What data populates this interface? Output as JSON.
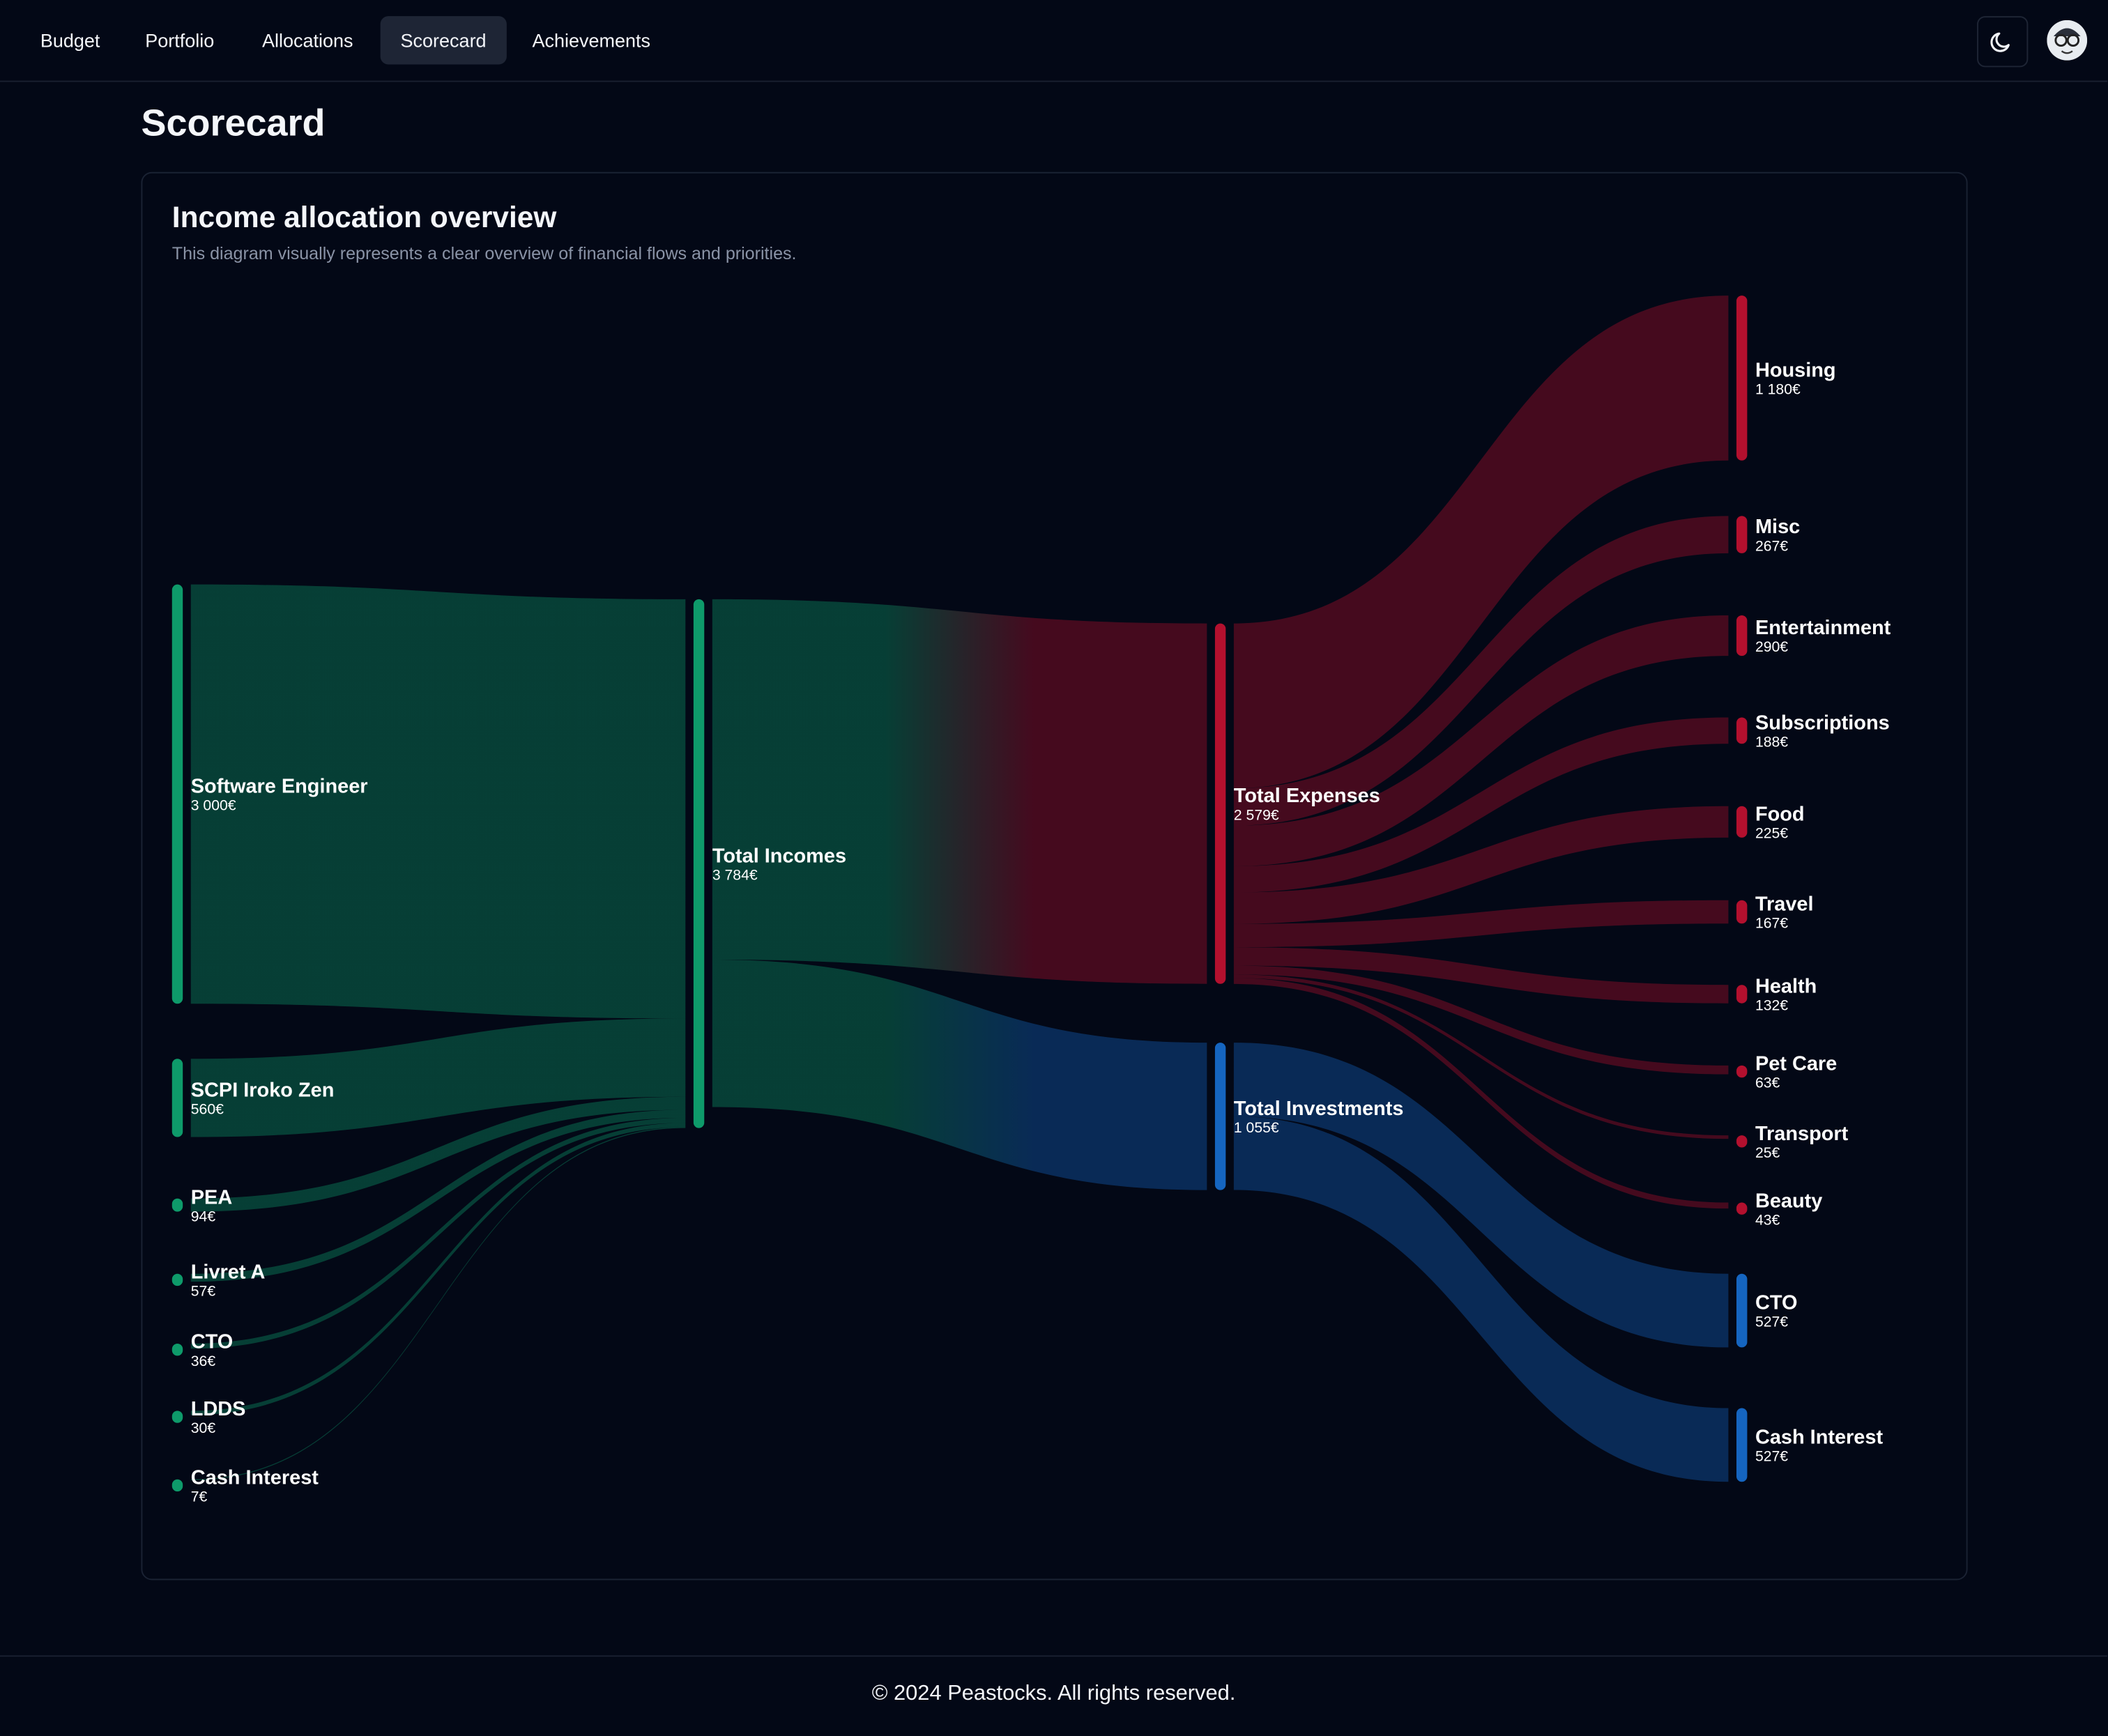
{
  "nav": {
    "items": [
      "Budget",
      "Portfolio",
      "Allocations",
      "Scorecard",
      "Achievements"
    ],
    "active": 3
  },
  "page_title": "Scorecard",
  "card": {
    "title": "Income allocation overview",
    "subtitle": "This diagram visually represents a clear overview of financial flows and priorities."
  },
  "chart_data": {
    "type": "sankey",
    "nodes": [
      {
        "name": "Software Engineer",
        "value": 3000,
        "value_label": "3 000€",
        "color": "#0e9a6a"
      },
      {
        "name": "SCPI Iroko Zen",
        "value": 560,
        "value_label": "560€",
        "color": "#0e9a6a"
      },
      {
        "name": "PEA",
        "value": 94,
        "value_label": "94€",
        "color": "#0e9a6a"
      },
      {
        "name": "Livret A",
        "value": 57,
        "value_label": "57€",
        "color": "#0e9a6a"
      },
      {
        "name": "CTO",
        "value": 36,
        "value_label": "36€",
        "color": "#0e9a6a"
      },
      {
        "name": "LDDS",
        "value": 30,
        "value_label": "30€",
        "color": "#0e9a6a"
      },
      {
        "name": "Cash Interest",
        "value": 7,
        "value_label": "7€",
        "color": "#0e9a6a"
      },
      {
        "name": "Total Incomes",
        "value": 3784,
        "value_label": "3 784€",
        "color": "#0e9a6a"
      },
      {
        "name": "Total Expenses",
        "value": 2579,
        "value_label": "2 579€",
        "color": "#b3102e"
      },
      {
        "name": "Total Investments",
        "value": 1055,
        "value_label": "1 055€",
        "color": "#1565c0"
      },
      {
        "name": "Housing",
        "value": 1180,
        "value_label": "1 180€",
        "color": "#b3102e"
      },
      {
        "name": "Misc",
        "value": 267,
        "value_label": "267€",
        "color": "#b3102e"
      },
      {
        "name": "Entertainment",
        "value": 290,
        "value_label": "290€",
        "color": "#b3102e"
      },
      {
        "name": "Subscriptions",
        "value": 188,
        "value_label": "188€",
        "color": "#b3102e"
      },
      {
        "name": "Food",
        "value": 225,
        "value_label": "225€",
        "color": "#b3102e"
      },
      {
        "name": "Travel",
        "value": 167,
        "value_label": "167€",
        "color": "#b3102e"
      },
      {
        "name": "Health",
        "value": 132,
        "value_label": "132€",
        "color": "#b3102e"
      },
      {
        "name": "Pet Care",
        "value": 63,
        "value_label": "63€",
        "color": "#b3102e"
      },
      {
        "name": "Transport",
        "value": 25,
        "value_label": "25€",
        "color": "#b3102e"
      },
      {
        "name": "Beauty",
        "value": 43,
        "value_label": "43€",
        "color": "#b3102e"
      },
      {
        "name": "CTO",
        "value": 527,
        "value_label": "527€",
        "color": "#1565c0"
      },
      {
        "name": "Cash Interest",
        "value": 527,
        "value_label": "527€",
        "color": "#1565c0"
      }
    ],
    "links": [
      {
        "source": 0,
        "target": 7,
        "value": 3000
      },
      {
        "source": 1,
        "target": 7,
        "value": 560
      },
      {
        "source": 2,
        "target": 7,
        "value": 94
      },
      {
        "source": 3,
        "target": 7,
        "value": 57
      },
      {
        "source": 4,
        "target": 7,
        "value": 36
      },
      {
        "source": 5,
        "target": 7,
        "value": 30
      },
      {
        "source": 6,
        "target": 7,
        "value": 7
      },
      {
        "source": 7,
        "target": 8,
        "value": 2579
      },
      {
        "source": 7,
        "target": 9,
        "value": 1055
      },
      {
        "source": 8,
        "target": 10,
        "value": 1180
      },
      {
        "source": 8,
        "target": 11,
        "value": 267
      },
      {
        "source": 8,
        "target": 12,
        "value": 290
      },
      {
        "source": 8,
        "target": 13,
        "value": 188
      },
      {
        "source": 8,
        "target": 14,
        "value": 225
      },
      {
        "source": 8,
        "target": 15,
        "value": 167
      },
      {
        "source": 8,
        "target": 16,
        "value": 132
      },
      {
        "source": 8,
        "target": 17,
        "value": 63
      },
      {
        "source": 8,
        "target": 18,
        "value": 25
      },
      {
        "source": 8,
        "target": 19,
        "value": 43
      },
      {
        "source": 9,
        "target": 20,
        "value": 527
      },
      {
        "source": 9,
        "target": 21,
        "value": 527
      }
    ]
  },
  "footer": "© 2024 Peastocks. All rights reserved."
}
